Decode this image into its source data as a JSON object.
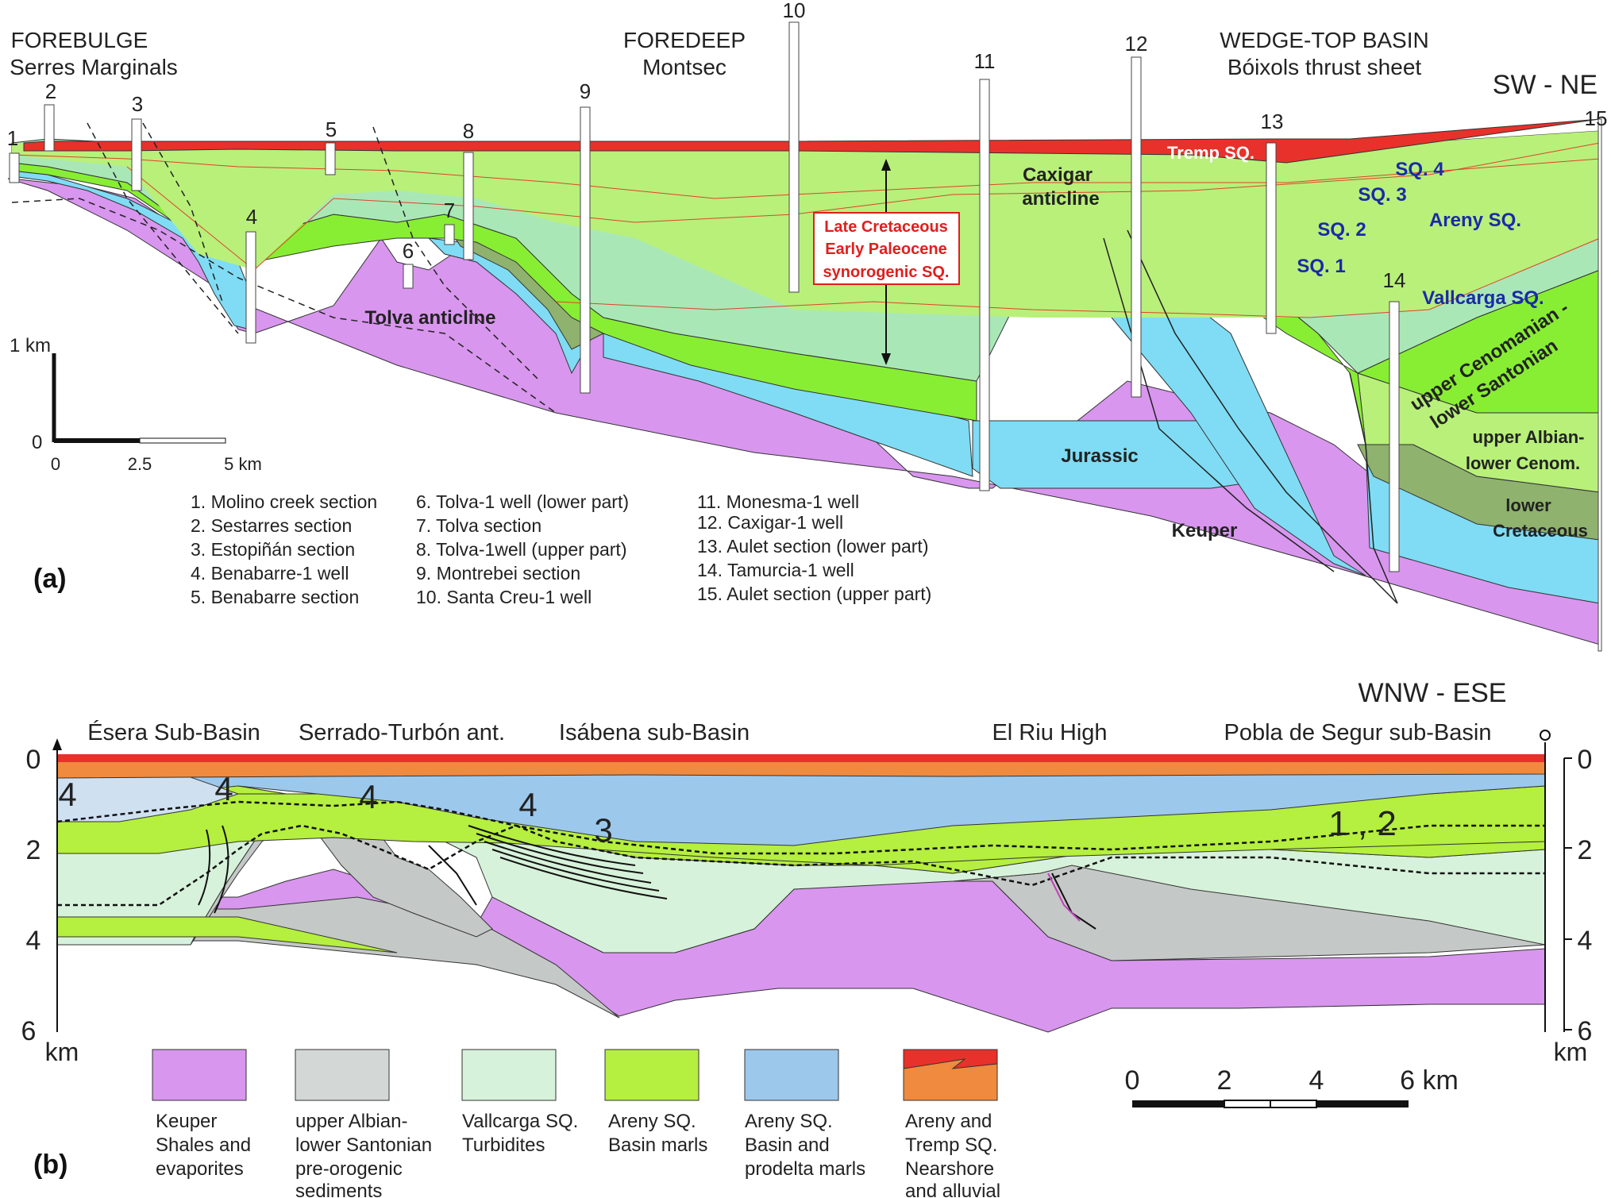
{
  "panel_a": {
    "panel_label": "(a)",
    "header_forebulge": "FOREBULGE",
    "header_forebulge_sub": "Serres Marginals",
    "header_foredeep": "FOREDEEP",
    "header_foredeep_sub": "Montsec",
    "header_wedgetop": "WEDGE-TOP BASIN",
    "header_wedgetop_sub": "Bóixols thrust sheet",
    "orientation": "SW - NE",
    "column_numbers": [
      "1",
      "2",
      "3",
      "4",
      "5",
      "6",
      "7",
      "8",
      "9",
      "10",
      "11",
      "12",
      "13",
      "14",
      "15"
    ],
    "labels": {
      "tremp": "Tremp SQ.",
      "sq4": "SQ. 4",
      "sq3": "SQ. 3",
      "sq2": "SQ. 2",
      "sq1": "SQ. 1",
      "areny": "Areny SQ.",
      "vallcarga": "Vallcarga SQ.",
      "caxigar_1": "Caxigar",
      "caxigar_2": "anticline",
      "tolva": "Tolva anticline",
      "jurassic": "Jurassic",
      "keuper": "Keuper",
      "late_cret_1": "Late Cretaceous",
      "late_cret_2": "Early Paleocene",
      "late_cret_3": "synorogenic SQ.",
      "upper_ceno_1": "upper Cenomanian -",
      "upper_ceno_2": "lower Santonian",
      "upper_alb_1": "upper Albian-",
      "upper_alb_2": "lower Cenom.",
      "lower_cret_1": "lower",
      "lower_cret_2": "Cretaceous"
    },
    "scale": {
      "top": "1 km",
      "bottom": "0",
      "ticks": [
        "0",
        "2.5",
        "5 km"
      ]
    },
    "legend": [
      "1. Molino creek section",
      "2. Sestarres section",
      "3. Estopiñán section",
      "4. Benabarre-1 well",
      "5. Benabarre section",
      "6. Tolva-1 well (lower part)",
      "7. Tolva section",
      "8. Tolva-1well (upper part)",
      "9. Montrebei section",
      "10. Santa Creu-1 well",
      "11. Monesma-1 well",
      "12. Caxigar-1 well",
      "13. Aulet section (lower part)",
      "14. Tamurcia-1 well",
      "15. Aulet section (upper part)"
    ]
  },
  "panel_b": {
    "panel_label": "(b)",
    "orientation": "WNW - ESE",
    "headers": [
      "Ésera Sub-Basin",
      "Serrado-Turbón ant.",
      "Isábena sub-Basin",
      "El Riu High",
      "Pobla de Segur sub-Basin"
    ],
    "depth_ticks": [
      "0",
      "2",
      "4",
      "6"
    ],
    "depth_unit": "km",
    "seq_labels": [
      "4",
      "4",
      "4",
      "4",
      "3",
      "1 , 2"
    ],
    "scale_ticks": [
      "0",
      "2",
      "4",
      "6 km"
    ],
    "legend": [
      {
        "color": "#d896ee",
        "lines": [
          "Keuper",
          "Shales and",
          "evaporites"
        ]
      },
      {
        "color": "#d3d8d6",
        "lines": [
          "upper Albian-",
          "lower Santonian",
          "pre-orogenic",
          "sediments"
        ]
      },
      {
        "color": "#d7f2da",
        "lines": [
          "Vallcarga SQ.",
          "Turbidites"
        ]
      },
      {
        "color": "#b5ef3f",
        "lines": [
          "Areny SQ.",
          "Basin marls"
        ]
      },
      {
        "color": "#9cc8ec",
        "lines": [
          "Areny SQ.",
          "Basin and",
          "prodelta marls"
        ]
      },
      {
        "color": "#e8312a",
        "lines": [
          "Areny and",
          "Tremp SQ.",
          "Nearshore",
          "and alluvial"
        ]
      }
    ]
  },
  "colors": {
    "keuper": "#d896ee",
    "jurassic": "#7fdcf4",
    "green_bright": "#88ee33",
    "green_light": "#b8f07a",
    "green_pale": "#a9e8b6",
    "olive": "#8fb26e",
    "red": "#e8312a",
    "orange": "#f08a3e",
    "grey": "#c4c8c6",
    "blue_basin": "#9cc8ec",
    "label_blue": "#1a2aa8",
    "label_red": "#e01e1e"
  }
}
